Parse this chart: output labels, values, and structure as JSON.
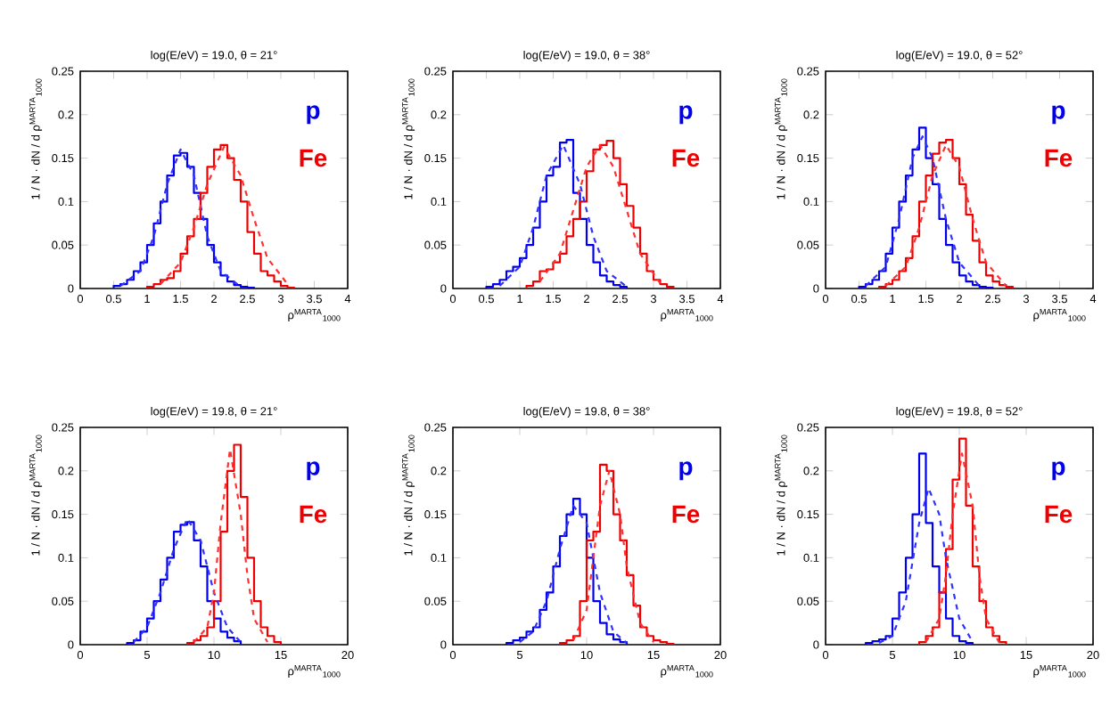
{
  "chart_data": [
    {
      "type": "histogram",
      "title": "log(E/eV) = 19.0, θ = 21°",
      "xlabel": "ρ$^{MARTA}$$_{1000}$",
      "ylabel": "1 / N · dN / d ρ$^{MARTA}$$_{1000}$",
      "xlim": [
        0,
        4
      ],
      "ylim": [
        0,
        0.25
      ],
      "xticks": [
        0,
        0.5,
        1,
        1.5,
        2,
        2.5,
        3,
        3.5,
        4
      ],
      "yticks": [
        0,
        0.05,
        0.1,
        0.15,
        0.2,
        0.25
      ],
      "series": [
        {
          "name": "p",
          "color": "#0000ee",
          "type": "histogram",
          "bins": [
            0.5,
            0.6,
            0.7,
            0.8,
            0.9,
            1.0,
            1.1,
            1.2,
            1.3,
            1.4,
            1.5,
            1.6,
            1.7,
            1.8,
            1.9,
            2.0,
            2.1,
            2.2,
            2.3,
            2.4,
            2.5,
            2.6
          ],
          "values": [
            0.003,
            0.005,
            0.01,
            0.02,
            0.03,
            0.05,
            0.075,
            0.1,
            0.13,
            0.153,
            0.156,
            0.14,
            0.11,
            0.08,
            0.05,
            0.03,
            0.015,
            0.008,
            0.004,
            0.002,
            0.001
          ]
        },
        {
          "name": "Fe",
          "color": "#ee0000",
          "type": "histogram",
          "bins": [
            1.0,
            1.1,
            1.2,
            1.3,
            1.4,
            1.5,
            1.6,
            1.7,
            1.8,
            1.9,
            2.0,
            2.1,
            2.2,
            2.3,
            2.4,
            2.5,
            2.6,
            2.7,
            2.8,
            2.9,
            3.0,
            3.1,
            3.2
          ],
          "values": [
            0.002,
            0.005,
            0.01,
            0.012,
            0.02,
            0.04,
            0.06,
            0.08,
            0.11,
            0.14,
            0.16,
            0.165,
            0.15,
            0.125,
            0.1,
            0.065,
            0.04,
            0.02,
            0.015,
            0.008,
            0.003,
            0.001
          ]
        },
        {
          "color": "#3030ff",
          "type": "line",
          "line_style": "dashed",
          "x": [
            0.6,
            0.9,
            1.1,
            1.3,
            1.5,
            1.7,
            1.9,
            2.1,
            2.4
          ],
          "values": [
            0.003,
            0.02,
            0.06,
            0.12,
            0.16,
            0.13,
            0.06,
            0.02,
            0.002
          ]
        },
        {
          "color": "#ff3030",
          "type": "line",
          "line_style": "dashed",
          "x": [
            1.2,
            1.5,
            1.7,
            1.9,
            2.15,
            2.4,
            2.6,
            2.8,
            3.1
          ],
          "values": [
            0.005,
            0.03,
            0.07,
            0.12,
            0.163,
            0.13,
            0.08,
            0.035,
            0.005
          ]
        }
      ]
    },
    {
      "type": "histogram",
      "title": "log(E/eV) = 19.0, θ = 38°",
      "xlabel": "ρ$^{MARTA}$$_{1000}$",
      "ylabel": "1 / N · dN / d ρ$^{MARTA}$$_{1000}$",
      "xlim": [
        0,
        4
      ],
      "ylim": [
        0,
        0.25
      ],
      "xticks": [
        0,
        0.5,
        1,
        1.5,
        2,
        2.5,
        3,
        3.5,
        4
      ],
      "yticks": [
        0,
        0.05,
        0.1,
        0.15,
        0.2,
        0.25
      ],
      "series": [
        {
          "name": "p",
          "color": "#0000ee",
          "type": "histogram",
          "bins": [
            0.5,
            0.6,
            0.7,
            0.8,
            0.9,
            1.0,
            1.1,
            1.2,
            1.3,
            1.4,
            1.5,
            1.6,
            1.7,
            1.8,
            1.9,
            2.0,
            2.1,
            2.2,
            2.3,
            2.4,
            2.5,
            2.6
          ],
          "values": [
            0.002,
            0.005,
            0.01,
            0.02,
            0.025,
            0.035,
            0.05,
            0.07,
            0.1,
            0.13,
            0.14,
            0.168,
            0.171,
            0.11,
            0.08,
            0.05,
            0.03,
            0.015,
            0.008,
            0.004,
            0.002
          ]
        },
        {
          "name": "Fe",
          "color": "#ee0000",
          "type": "histogram",
          "bins": [
            1.1,
            1.2,
            1.3,
            1.4,
            1.5,
            1.6,
            1.7,
            1.8,
            1.9,
            2.0,
            2.1,
            2.2,
            2.3,
            2.4,
            2.5,
            2.6,
            2.7,
            2.8,
            2.9,
            3.0,
            3.1,
            3.2,
            3.3
          ],
          "values": [
            0.003,
            0.008,
            0.02,
            0.022,
            0.03,
            0.04,
            0.06,
            0.08,
            0.1,
            0.135,
            0.16,
            0.165,
            0.17,
            0.15,
            0.12,
            0.095,
            0.07,
            0.04,
            0.02,
            0.01,
            0.005,
            0.002
          ]
        },
        {
          "color": "#3030ff",
          "type": "line",
          "line_style": "dashed",
          "x": [
            0.7,
            1.0,
            1.2,
            1.4,
            1.65,
            1.9,
            2.1,
            2.3,
            2.6
          ],
          "values": [
            0.003,
            0.025,
            0.07,
            0.13,
            0.165,
            0.12,
            0.06,
            0.02,
            0.002
          ]
        },
        {
          "color": "#ff3030",
          "type": "line",
          "line_style": "dashed",
          "x": [
            1.3,
            1.6,
            1.8,
            2.0,
            2.2,
            2.4,
            2.6,
            2.8,
            3.1
          ],
          "values": [
            0.008,
            0.04,
            0.09,
            0.14,
            0.165,
            0.14,
            0.09,
            0.04,
            0.006
          ]
        }
      ]
    },
    {
      "type": "histogram",
      "title": "log(E/eV) = 19.0, θ = 52°",
      "xlabel": "ρ$^{MARTA}$$_{1000}$",
      "ylabel": "1 / N · dN / d ρ$^{MARTA}$$_{1000}$",
      "xlim": [
        0,
        4
      ],
      "ylim": [
        0,
        0.25
      ],
      "xticks": [
        0,
        0.5,
        1,
        1.5,
        2,
        2.5,
        3,
        3.5,
        4
      ],
      "yticks": [
        0,
        0.05,
        0.1,
        0.15,
        0.2,
        0.25
      ],
      "series": [
        {
          "name": "p",
          "color": "#0000ee",
          "type": "histogram",
          "bins": [
            0.5,
            0.6,
            0.7,
            0.8,
            0.9,
            1.0,
            1.1,
            1.2,
            1.3,
            1.4,
            1.5,
            1.6,
            1.7,
            1.8,
            1.9,
            2.0,
            2.1,
            2.2,
            2.3,
            2.4,
            2.5
          ],
          "values": [
            0.002,
            0.005,
            0.01,
            0.02,
            0.04,
            0.07,
            0.1,
            0.13,
            0.16,
            0.185,
            0.15,
            0.12,
            0.08,
            0.05,
            0.03,
            0.015,
            0.008,
            0.004,
            0.002,
            0.001
          ]
        },
        {
          "name": "Fe",
          "color": "#ee0000",
          "type": "histogram",
          "bins": [
            0.8,
            0.9,
            1.0,
            1.1,
            1.2,
            1.3,
            1.4,
            1.5,
            1.6,
            1.7,
            1.8,
            1.9,
            2.0,
            2.1,
            2.2,
            2.3,
            2.4,
            2.5,
            2.6,
            2.7,
            2.8
          ],
          "values": [
            0.002,
            0.005,
            0.01,
            0.02,
            0.035,
            0.06,
            0.1,
            0.13,
            0.155,
            0.168,
            0.171,
            0.15,
            0.12,
            0.085,
            0.055,
            0.03,
            0.015,
            0.008,
            0.004,
            0.002
          ]
        },
        {
          "color": "#3030ff",
          "type": "line",
          "line_style": "dashed",
          "x": [
            0.6,
            0.9,
            1.1,
            1.3,
            1.45,
            1.6,
            1.8,
            2.0,
            2.3
          ],
          "values": [
            0.003,
            0.025,
            0.08,
            0.15,
            0.175,
            0.15,
            0.08,
            0.03,
            0.003
          ]
        },
        {
          "color": "#ff3030",
          "type": "line",
          "line_style": "dashed",
          "x": [
            0.9,
            1.2,
            1.4,
            1.6,
            1.8,
            2.0,
            2.2,
            2.4,
            2.7
          ],
          "values": [
            0.003,
            0.025,
            0.07,
            0.13,
            0.165,
            0.14,
            0.08,
            0.03,
            0.003
          ]
        }
      ]
    },
    {
      "type": "histogram",
      "title": "log(E/eV) = 19.8, θ = 21°",
      "xlabel": "ρ$^{MARTA}$$_{1000}$",
      "ylabel": "1 / N · dN / d ρ$^{MARTA}$$_{1000}$",
      "xlim": [
        0,
        20
      ],
      "ylim": [
        0,
        0.25
      ],
      "xticks": [
        0,
        5,
        10,
        15,
        20
      ],
      "yticks": [
        0,
        0.05,
        0.1,
        0.15,
        0.2,
        0.25
      ],
      "series": [
        {
          "name": "p",
          "color": "#0000ee",
          "type": "histogram",
          "bins": [
            3.5,
            4,
            4.5,
            5,
            5.5,
            6,
            6.5,
            7,
            7.5,
            8,
            8.5,
            9,
            9.5,
            10,
            10.5,
            11,
            11.5,
            12
          ],
          "values": [
            0.002,
            0.005,
            0.015,
            0.03,
            0.05,
            0.075,
            0.1,
            0.13,
            0.138,
            0.141,
            0.12,
            0.09,
            0.05,
            0.03,
            0.015,
            0.008,
            0.004
          ]
        },
        {
          "name": "Fe",
          "color": "#ee0000",
          "type": "histogram",
          "bins": [
            8,
            8.5,
            9,
            9.5,
            10,
            10.5,
            11,
            11.5,
            12,
            12.5,
            13,
            13.5,
            14,
            14.5,
            15
          ],
          "values": [
            0.002,
            0.005,
            0.01,
            0.02,
            0.05,
            0.13,
            0.2,
            0.23,
            0.17,
            0.1,
            0.05,
            0.02,
            0.01,
            0.003
          ]
        },
        {
          "color": "#3030ff",
          "type": "line",
          "line_style": "dashed",
          "x": [
            4,
            5,
            6,
            7,
            8,
            9,
            10,
            11,
            12
          ],
          "values": [
            0.003,
            0.02,
            0.06,
            0.11,
            0.145,
            0.12,
            0.06,
            0.02,
            0.003
          ]
        },
        {
          "color": "#ff3030",
          "type": "line",
          "line_style": "dashed",
          "x": [
            8.5,
            9.5,
            10,
            10.5,
            11.2,
            12,
            12.5,
            13,
            14
          ],
          "values": [
            0.003,
            0.02,
            0.06,
            0.14,
            0.225,
            0.15,
            0.08,
            0.03,
            0.003
          ]
        }
      ]
    },
    {
      "type": "histogram",
      "title": "log(E/eV) = 19.8, θ = 38°",
      "xlabel": "ρ$^{MARTA}$$_{1000}$",
      "ylabel": "1 / N · dN / d ρ$^{MARTA}$$_{1000}$",
      "xlim": [
        0,
        20
      ],
      "ylim": [
        0,
        0.25
      ],
      "xticks": [
        0,
        5,
        10,
        15,
        20
      ],
      "yticks": [
        0,
        0.05,
        0.1,
        0.15,
        0.2,
        0.25
      ],
      "series": [
        {
          "name": "p",
          "color": "#0000ee",
          "type": "histogram",
          "bins": [
            4,
            4.5,
            5,
            5.5,
            6,
            6.5,
            7,
            7.5,
            8,
            8.5,
            9,
            9.5,
            10,
            10.5,
            11,
            11.5,
            12,
            12.5,
            13
          ],
          "values": [
            0.002,
            0.005,
            0.008,
            0.015,
            0.02,
            0.04,
            0.06,
            0.09,
            0.125,
            0.15,
            0.168,
            0.15,
            0.1,
            0.05,
            0.025,
            0.012,
            0.006,
            0.003
          ]
        },
        {
          "name": "Fe",
          "color": "#ee0000",
          "type": "histogram",
          "bins": [
            8,
            8.5,
            9,
            9.5,
            10,
            10.5,
            11,
            11.5,
            12,
            12.5,
            13,
            13.5,
            14,
            14.5,
            15,
            15.5,
            16,
            16.5
          ],
          "values": [
            0.002,
            0.005,
            0.01,
            0.05,
            0.12,
            0.13,
            0.207,
            0.2,
            0.15,
            0.12,
            0.08,
            0.045,
            0.02,
            0.01,
            0.005,
            0.003,
            0.001
          ]
        },
        {
          "color": "#3030ff",
          "type": "line",
          "line_style": "dashed",
          "x": [
            5,
            6,
            7,
            8,
            9,
            10,
            11,
            12,
            13
          ],
          "values": [
            0.003,
            0.015,
            0.05,
            0.11,
            0.16,
            0.14,
            0.06,
            0.015,
            0.002
          ]
        },
        {
          "color": "#ff3030",
          "type": "line",
          "line_style": "dashed",
          "x": [
            9,
            10,
            10.5,
            11,
            11.7,
            12.5,
            13,
            14,
            15
          ],
          "values": [
            0.005,
            0.04,
            0.1,
            0.16,
            0.2,
            0.15,
            0.09,
            0.025,
            0.003
          ]
        }
      ]
    },
    {
      "type": "histogram",
      "title": "log(E/eV) = 19.8, θ = 52°",
      "xlabel": "ρ$^{MARTA}$$_{1000}$",
      "ylabel": "1 / N · dN / d ρ$^{MARTA}$$_{1000}$",
      "xlim": [
        0,
        20
      ],
      "ylim": [
        0,
        0.25
      ],
      "xticks": [
        0,
        5,
        10,
        15,
        20
      ],
      "yticks": [
        0,
        0.05,
        0.1,
        0.15,
        0.2,
        0.25
      ],
      "series": [
        {
          "name": "p",
          "color": "#0000ee",
          "type": "histogram",
          "bins": [
            3,
            3.5,
            4,
            4.5,
            5,
            5.5,
            6,
            6.5,
            7,
            7.5,
            8,
            8.5,
            9,
            9.5,
            10,
            10.5,
            11
          ],
          "values": [
            0.002,
            0.004,
            0.006,
            0.01,
            0.03,
            0.06,
            0.1,
            0.15,
            0.22,
            0.14,
            0.09,
            0.06,
            0.03,
            0.01,
            0.004,
            0.002
          ]
        },
        {
          "name": "Fe",
          "color": "#ee0000",
          "type": "histogram",
          "bins": [
            7,
            7.5,
            8,
            8.5,
            9,
            9.5,
            10,
            10.5,
            11,
            11.5,
            12,
            12.5,
            13,
            13.5
          ],
          "values": [
            0.003,
            0.01,
            0.02,
            0.06,
            0.11,
            0.19,
            0.237,
            0.16,
            0.09,
            0.05,
            0.02,
            0.01,
            0.003
          ]
        },
        {
          "color": "#3030ff",
          "type": "line",
          "line_style": "dashed",
          "x": [
            4,
            5,
            6,
            7,
            7.7,
            8.5,
            9,
            10,
            11
          ],
          "values": [
            0.002,
            0.01,
            0.05,
            0.14,
            0.18,
            0.15,
            0.1,
            0.03,
            0.003
          ]
        },
        {
          "color": "#ff3030",
          "type": "line",
          "line_style": "dashed",
          "x": [
            7.5,
            8.5,
            9,
            9.5,
            10.2,
            11,
            11.5,
            12,
            13
          ],
          "values": [
            0.003,
            0.03,
            0.08,
            0.15,
            0.22,
            0.16,
            0.08,
            0.03,
            0.002
          ]
        }
      ]
    }
  ]
}
